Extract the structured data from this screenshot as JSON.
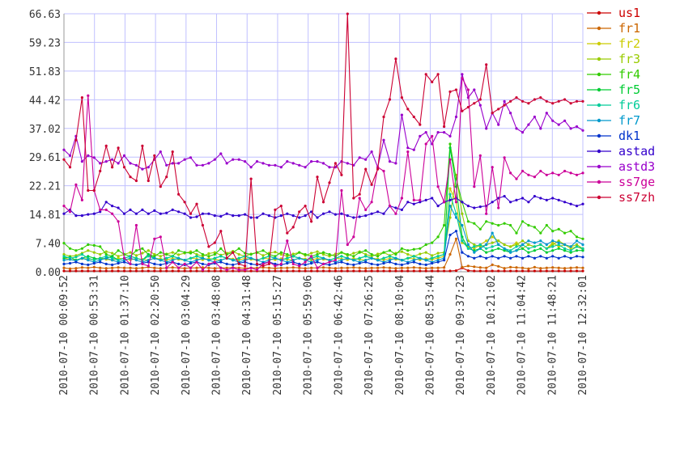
{
  "chart_data": {
    "type": "line",
    "title": "",
    "xlabel": "",
    "ylabel": "",
    "ylim": [
      0,
      66.63
    ],
    "yticks": [
      0.0,
      7.4,
      14.81,
      22.21,
      29.61,
      37.02,
      44.42,
      51.83,
      59.23,
      66.63
    ],
    "ytick_labels": [
      "0.00",
      "7.40",
      "14.81",
      "22.21",
      "29.61",
      "37.02",
      "44.42",
      "51.83",
      "59.23",
      "66.63"
    ],
    "x_start": "2010-07-10 00:09:52",
    "x_end": "2010-07-10 12:32:01",
    "xtick_labels": [
      "2010-07-10 00:09:52",
      "2010-07-10 00:53:31",
      "2010-07-10 01:37:10",
      "2010-07-10 02:20:50",
      "2010-07-10 03:04:29",
      "2010-07-10 03:48:08",
      "2010-07-10 04:31:48",
      "2010-07-10 05:15:27",
      "2010-07-10 05:59:06",
      "2010-07-10 06:42:46",
      "2010-07-10 07:26:25",
      "2010-07-10 08:10:04",
      "2010-07-10 08:53:44",
      "2010-07-10 09:37:23",
      "2010-07-10 10:21:02",
      "2010-07-10 11:04:42",
      "2010-07-10 11:48:21",
      "2010-07-10 12:32:01"
    ],
    "grid": true,
    "legend_position": "right",
    "series": [
      {
        "name": "us1",
        "color": "#cc0000",
        "values": [
          0.2,
          0.2,
          0.2,
          0.2,
          0.2,
          0.2,
          0.2,
          0.2,
          0.2,
          0.2,
          0.2,
          0.2,
          0.2,
          0.2,
          0.2,
          0.2,
          0.2,
          0.2,
          0.2,
          0.2,
          0.2,
          0.2,
          0.2,
          0.2,
          0.2,
          0.2,
          0.2,
          0.2,
          0.2,
          0.2,
          0.2,
          0.2,
          0.2,
          0.2,
          0.2,
          0.2,
          0.2,
          0.2,
          0.2,
          0.2,
          0.2,
          0.2,
          0.2,
          0.2,
          0.2,
          0.2,
          0.2,
          0.2,
          0.2,
          0.2,
          0.2,
          0.2,
          0.2,
          0.2,
          0.2,
          0.2,
          0.2,
          0.2,
          0.2,
          0.2,
          0.2,
          0.2,
          0.2,
          0.2,
          0.2,
          0.3,
          1.0,
          0.3,
          0.2,
          0.2,
          0.2,
          0.2,
          0.2,
          0.2,
          0.2,
          0.2,
          0.2,
          0.2,
          0.2,
          0.2,
          0.2,
          0.2,
          0.2,
          0.2,
          0.2,
          0.2,
          0.2
        ]
      },
      {
        "name": "fr1",
        "color": "#cc6600",
        "values": [
          1.0,
          0.8,
          0.9,
          1.1,
          1.0,
          1.2,
          1.0,
          0.9,
          1.0,
          1.1,
          1.0,
          1.0,
          0.9,
          1.0,
          1.2,
          1.0,
          0.9,
          1.0,
          1.1,
          1.0,
          0.9,
          1.0,
          1.0,
          1.1,
          1.0,
          0.9,
          1.0,
          1.0,
          1.1,
          1.0,
          0.9,
          1.0,
          1.0,
          1.1,
          1.0,
          0.9,
          1.0,
          1.0,
          1.1,
          1.0,
          0.9,
          1.0,
          1.0,
          1.1,
          1.0,
          0.9,
          1.0,
          1.0,
          1.1,
          1.0,
          0.9,
          1.0,
          1.0,
          1.1,
          1.0,
          0.9,
          1.0,
          1.0,
          1.1,
          1.0,
          0.9,
          1.0,
          1.0,
          1.1,
          4.5,
          8.5,
          1.2,
          1.5,
          1.3,
          1.1,
          1.0,
          1.8,
          1.4,
          0.9,
          1.2,
          1.1,
          1.0,
          0.8,
          1.2,
          0.9,
          1.0,
          1.1,
          1.0,
          0.9,
          1.0,
          1.1,
          1.0
        ]
      },
      {
        "name": "fr2",
        "color": "#cccc00",
        "values": [
          3.5,
          3.2,
          3.0,
          3.4,
          3.3,
          3.1,
          3.6,
          3.2,
          3.0,
          3.5,
          3.3,
          3.1,
          3.4,
          3.2,
          3.0,
          3.5,
          3.3,
          3.1,
          3.4,
          3.2,
          3.0,
          3.5,
          3.3,
          3.1,
          3.4,
          3.2,
          3.0,
          3.5,
          3.3,
          3.1,
          3.4,
          3.2,
          3.0,
          3.5,
          3.3,
          3.1,
          3.4,
          3.2,
          3.0,
          3.5,
          3.3,
          3.1,
          3.4,
          3.2,
          3.0,
          3.5,
          3.3,
          3.1,
          3.4,
          3.2,
          3.0,
          3.5,
          3.3,
          3.1,
          3.4,
          3.2,
          3.0,
          3.5,
          3.3,
          3.1,
          3.4,
          3.2,
          3.5,
          4.0,
          21.5,
          18.0,
          7.5,
          6.5,
          6.0,
          7.0,
          8.0,
          9.0,
          8.0,
          7.0,
          6.5,
          7.5,
          6.0,
          7.0,
          6.5,
          7.0,
          6.0,
          7.5,
          6.5,
          7.0,
          6.0,
          6.5,
          5.8
        ]
      },
      {
        "name": "fr3",
        "color": "#99cc00",
        "values": [
          4.5,
          4.0,
          4.2,
          4.8,
          5.5,
          5.0,
          4.5,
          5.2,
          4.8,
          4.0,
          4.5,
          5.0,
          4.2,
          4.8,
          5.5,
          4.5,
          4.0,
          4.6,
          5.0,
          4.4,
          4.8,
          5.2,
          4.5,
          4.0,
          4.7,
          5.0,
          4.3,
          4.8,
          5.3,
          4.5,
          4.0,
          4.6,
          5.0,
          4.2,
          4.8,
          5.1,
          4.5,
          4.0,
          4.6,
          5.0,
          4.2,
          4.8,
          5.2,
          4.5,
          4.0,
          4.6,
          5.0,
          4.2,
          4.8,
          5.2,
          4.5,
          4.0,
          4.6,
          5.0,
          4.2,
          4.8,
          5.2,
          4.5,
          4.0,
          4.6,
          5.0,
          4.2,
          4.8,
          5.0,
          14.0,
          25.0,
          15.0,
          8.0,
          7.0,
          6.5,
          7.0,
          7.5,
          8.0,
          7.0,
          6.5,
          7.0,
          8.0,
          7.0,
          6.5,
          7.0,
          6.0,
          7.0,
          8.0,
          7.0,
          6.5,
          7.0,
          6.0
        ]
      },
      {
        "name": "fr4",
        "color": "#33cc00",
        "values": [
          7.4,
          6.0,
          5.5,
          6.0,
          7.0,
          6.8,
          6.5,
          4.5,
          4.0,
          5.5,
          4.5,
          4.0,
          5.5,
          6.0,
          4.5,
          4.0,
          5.0,
          4.5,
          4.0,
          5.5,
          5.0,
          4.8,
          5.5,
          4.5,
          4.0,
          4.5,
          6.0,
          4.5,
          5.0,
          6.0,
          4.8,
          4.5,
          5.0,
          5.5,
          4.5,
          4.0,
          5.0,
          4.5,
          4.0,
          5.0,
          4.5,
          4.0,
          4.5,
          5.0,
          4.5,
          4.0,
          5.0,
          4.5,
          4.0,
          5.0,
          5.5,
          4.5,
          4.0,
          5.0,
          5.5,
          4.5,
          6.0,
          5.5,
          5.8,
          6.0,
          7.0,
          7.5,
          9.0,
          12.0,
          33.0,
          24.0,
          18.0,
          13.0,
          12.5,
          11.0,
          13.0,
          12.5,
          12.0,
          12.5,
          12.0,
          10.0,
          13.0,
          12.0,
          11.5,
          10.0,
          12.0,
          10.5,
          11.0,
          10.0,
          10.5,
          9.0,
          8.5
        ]
      },
      {
        "name": "fr5",
        "color": "#00cc33",
        "values": [
          3.5,
          3.8,
          3.0,
          3.5,
          4.0,
          3.5,
          3.2,
          3.5,
          4.0,
          3.0,
          3.5,
          4.0,
          3.5,
          3.0,
          4.5,
          3.5,
          3.0,
          3.5,
          4.0,
          3.5,
          3.0,
          3.5,
          4.0,
          3.5,
          3.0,
          3.5,
          4.0,
          3.5,
          3.0,
          3.5,
          4.0,
          3.5,
          3.0,
          3.5,
          4.0,
          3.5,
          3.0,
          3.5,
          4.0,
          3.5,
          3.0,
          3.5,
          4.0,
          3.5,
          3.0,
          3.5,
          4.0,
          3.5,
          3.0,
          3.5,
          4.0,
          3.5,
          3.0,
          3.5,
          4.0,
          3.5,
          3.0,
          3.5,
          4.0,
          3.5,
          3.0,
          3.5,
          4.0,
          4.5,
          32.0,
          22.0,
          9.0,
          6.0,
          5.5,
          6.0,
          5.0,
          5.5,
          6.0,
          5.5,
          5.0,
          5.5,
          6.0,
          5.0,
          5.5,
          6.0,
          5.0,
          5.5,
          6.0,
          5.5,
          5.0,
          5.5,
          5.5
        ]
      },
      {
        "name": "fr6",
        "color": "#00cc99",
        "values": [
          4.0,
          3.5,
          3.8,
          4.5,
          3.5,
          3.0,
          3.5,
          4.0,
          3.5,
          3.0,
          3.5,
          4.0,
          3.5,
          3.0,
          4.0,
          3.5,
          3.0,
          3.5,
          4.0,
          3.5,
          3.0,
          3.5,
          4.0,
          3.5,
          3.0,
          3.5,
          4.0,
          3.5,
          3.0,
          3.5,
          4.0,
          3.5,
          3.0,
          3.5,
          4.0,
          3.5,
          3.0,
          3.5,
          4.0,
          3.5,
          3.0,
          3.5,
          4.0,
          3.5,
          3.0,
          3.5,
          4.0,
          3.5,
          3.0,
          3.5,
          4.0,
          3.5,
          3.0,
          3.5,
          4.0,
          3.5,
          3.0,
          3.5,
          4.0,
          3.5,
          3.0,
          3.5,
          4.0,
          4.5,
          20.0,
          15.0,
          8.0,
          6.0,
          6.5,
          7.0,
          6.0,
          6.5,
          7.0,
          6.0,
          5.5,
          6.5,
          7.0,
          6.0,
          6.5,
          7.0,
          6.0,
          6.5,
          7.0,
          6.0,
          5.5,
          6.5,
          6.0
        ]
      },
      {
        "name": "fr7",
        "color": "#0099cc",
        "values": [
          3.0,
          3.2,
          2.8,
          3.5,
          3.0,
          2.5,
          3.0,
          3.5,
          3.0,
          2.5,
          3.0,
          3.5,
          3.0,
          2.5,
          3.0,
          3.5,
          3.0,
          2.5,
          3.0,
          3.5,
          3.0,
          2.5,
          3.0,
          3.5,
          3.0,
          2.5,
          3.0,
          3.5,
          3.0,
          2.5,
          3.0,
          3.5,
          3.0,
          2.5,
          3.0,
          3.5,
          3.0,
          2.5,
          3.0,
          3.5,
          3.0,
          2.5,
          3.0,
          3.5,
          3.0,
          2.5,
          3.0,
          3.5,
          3.0,
          2.5,
          3.0,
          3.5,
          3.0,
          2.5,
          3.0,
          3.5,
          3.0,
          2.5,
          3.0,
          3.5,
          3.0,
          2.5,
          3.0,
          3.5,
          17.0,
          14.0,
          12.0,
          7.0,
          5.0,
          6.0,
          7.0,
          10.0,
          7.0,
          6.0,
          5.0,
          5.5,
          7.0,
          8.0,
          7.5,
          8.0,
          7.0,
          8.0,
          7.5,
          7.0,
          6.5,
          8.0,
          7.0
        ]
      },
      {
        "name": "dk1",
        "color": "#0033cc",
        "values": [
          2.0,
          2.2,
          2.5,
          2.0,
          1.8,
          2.2,
          2.5,
          2.0,
          1.8,
          2.2,
          2.5,
          2.0,
          1.8,
          2.2,
          2.5,
          2.0,
          1.8,
          2.2,
          2.5,
          2.0,
          1.8,
          2.2,
          2.5,
          2.0,
          1.8,
          2.2,
          2.5,
          2.0,
          1.8,
          2.2,
          2.5,
          2.0,
          1.8,
          2.2,
          2.5,
          2.0,
          1.8,
          2.2,
          2.5,
          2.0,
          1.8,
          2.2,
          2.5,
          2.0,
          1.8,
          2.2,
          2.5,
          2.0,
          1.8,
          2.2,
          2.5,
          2.0,
          1.8,
          2.2,
          2.5,
          2.0,
          1.8,
          2.2,
          2.5,
          2.0,
          1.8,
          2.2,
          2.5,
          3.0,
          9.5,
          10.5,
          5.0,
          4.0,
          3.5,
          4.0,
          3.5,
          4.0,
          3.5,
          4.0,
          3.5,
          4.0,
          3.5,
          4.0,
          3.5,
          4.0,
          3.5,
          4.0,
          3.5,
          4.0,
          3.5,
          4.0,
          3.8
        ]
      },
      {
        "name": "astad",
        "color": "#3300cc",
        "values": [
          15.0,
          16.0,
          14.5,
          14.5,
          14.8,
          15.0,
          15.5,
          18.0,
          17.0,
          16.5,
          15.0,
          16.0,
          15.0,
          16.0,
          15.0,
          15.8,
          15.0,
          15.2,
          16.0,
          15.5,
          15.0,
          14.0,
          14.2,
          15.0,
          15.0,
          14.5,
          14.3,
          15.0,
          14.5,
          14.5,
          14.8,
          14.0,
          14.0,
          15.0,
          14.5,
          14.0,
          14.5,
          15.0,
          14.5,
          14.0,
          14.5,
          15.5,
          14.0,
          15.0,
          15.5,
          14.8,
          15.0,
          14.5,
          14.0,
          14.2,
          14.5,
          15.0,
          15.5,
          15.0,
          17.0,
          16.5,
          16.0,
          18.0,
          17.5,
          18.0,
          18.5,
          19.0,
          17.0,
          18.0,
          18.5,
          19.0,
          18.0,
          17.0,
          16.5,
          16.8,
          17.0,
          18.0,
          19.0,
          19.5,
          18.0,
          18.5,
          19.0,
          18.0,
          19.5,
          19.0,
          18.5,
          19.0,
          18.5,
          18.0,
          17.5,
          17.0,
          17.5
        ]
      },
      {
        "name": "astd3",
        "color": "#9900cc",
        "values": [
          31.5,
          30.0,
          35.0,
          28.5,
          30.0,
          29.5,
          28.0,
          28.5,
          29.0,
          28.0,
          30.0,
          28.0,
          27.5,
          26.5,
          27.0,
          29.0,
          31.0,
          27.5,
          28.0,
          28.0,
          29.0,
          29.5,
          27.5,
          27.5,
          28.0,
          29.0,
          30.5,
          28.0,
          29.0,
          29.0,
          28.5,
          27.0,
          28.5,
          28.0,
          27.5,
          27.5,
          27.0,
          28.5,
          28.0,
          27.5,
          27.0,
          28.5,
          28.5,
          28.0,
          27.0,
          27.0,
          28.5,
          28.0,
          27.5,
          29.5,
          29.0,
          31.0,
          27.0,
          34.0,
          28.5,
          28.0,
          40.5,
          32.0,
          31.5,
          35.0,
          36.0,
          33.0,
          36.0,
          36.0,
          35.0,
          40.0,
          51.0,
          45.0,
          47.0,
          43.0,
          37.0,
          41.0,
          38.0,
          44.0,
          41.0,
          37.0,
          36.0,
          38.0,
          40.0,
          37.0,
          41.0,
          39.0,
          38.0,
          39.0,
          37.0,
          37.5,
          36.5
        ]
      },
      {
        "name": "ss7ge",
        "color": "#cc0099",
        "values": [
          17.0,
          15.5,
          22.5,
          18.5,
          45.5,
          21.0,
          16.0,
          16.0,
          15.0,
          13.0,
          3.5,
          2.0,
          12.0,
          2.0,
          1.5,
          8.5,
          9.0,
          1.0,
          2.5,
          1.0,
          2.0,
          1.0,
          2.5,
          0.5,
          2.0,
          2.5,
          1.0,
          0.5,
          1.0,
          0.5,
          0.5,
          1.0,
          0.5,
          2.0,
          2.5,
          1.5,
          2.0,
          8.0,
          2.0,
          1.5,
          2.5,
          4.0,
          1.0,
          2.0,
          2.5,
          3.0,
          21.0,
          7.0,
          9.0,
          19.0,
          16.0,
          18.0,
          27.0,
          26.0,
          17.0,
          15.0,
          19.0,
          31.0,
          18.5,
          18.5,
          33.0,
          35.0,
          22.0,
          18.0,
          29.0,
          18.0,
          50.0,
          47.0,
          22.0,
          30.0,
          15.0,
          27.0,
          16.5,
          29.5,
          25.5,
          24.0,
          26.0,
          25.0,
          24.5,
          26.0,
          25.0,
          25.5,
          25.0,
          26.0,
          25.5,
          25.0,
          25.5
        ]
      },
      {
        "name": "ss7zh",
        "color": "#cc0033",
        "values": [
          29.0,
          27.0,
          34.0,
          45.0,
          21.0,
          21.0,
          26.0,
          32.5,
          27.0,
          32.0,
          27.0,
          24.5,
          23.5,
          32.5,
          23.5,
          30.0,
          22.0,
          24.5,
          31.0,
          20.0,
          18.0,
          15.0,
          17.5,
          12.0,
          6.5,
          7.5,
          10.5,
          3.5,
          5.0,
          2.0,
          1.5,
          24.0,
          2.0,
          1.5,
          2.0,
          16.0,
          17.0,
          10.0,
          11.5,
          15.5,
          17.0,
          13.0,
          24.5,
          18.0,
          23.0,
          28.0,
          25.0,
          66.6,
          19.0,
          20.0,
          26.5,
          22.5,
          26.5,
          40.0,
          44.5,
          55.0,
          45.0,
          42.0,
          40.0,
          38.0,
          51.0,
          49.0,
          51.0,
          37.5,
          46.5,
          47.0,
          41.5,
          42.5,
          43.5,
          44.5,
          53.5,
          41.0,
          42.0,
          43.0,
          44.0,
          45.0,
          44.0,
          43.5,
          44.5,
          45.0,
          44.0,
          43.5,
          44.0,
          44.5,
          43.5,
          44.0,
          44.0
        ]
      }
    ]
  }
}
